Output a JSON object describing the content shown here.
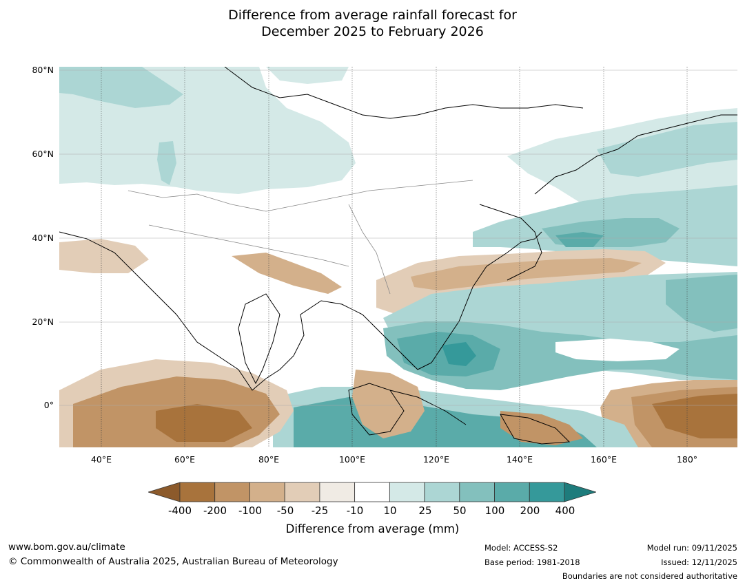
{
  "title": {
    "line1": "Difference from average rainfall forecast for",
    "line2": "December 2025 to February 2026"
  },
  "map": {
    "lat_labels": [
      "80°N",
      "60°N",
      "40°N",
      "20°N",
      "0°"
    ],
    "lon_labels": [
      "40°E",
      "60°E",
      "80°E",
      "100°E",
      "120°E",
      "140°E",
      "160°E",
      "180°"
    ],
    "extent": {
      "lon": [
        30,
        192
      ],
      "lat": [
        -10,
        81
      ]
    }
  },
  "colorbar": {
    "ticks": [
      "-400",
      "-200",
      "-100",
      "-50",
      "-25",
      "-10",
      "10",
      "25",
      "50",
      "100",
      "200",
      "400"
    ],
    "colors": [
      "#8c5a2b",
      "#a8733c",
      "#c19466",
      "#d3b08b",
      "#e2cdb7",
      "#f0ebe4",
      "#ffffff",
      "#d4e9e7",
      "#acd6d4",
      "#83c0bd",
      "#5aaba9",
      "#35999a",
      "#1e7c7c"
    ],
    "label": "Difference from average (mm)"
  },
  "footer": {
    "website": "www.bom.gov.au/climate",
    "copyright": "© Commonwealth of Australia 2025, Australian Bureau of Meteorology",
    "model": "Model: ACCESS-S2",
    "base_period": "Base period: 1981-2018",
    "model_run": "Model run: 09/11/2025",
    "issued": "Issued: 12/11/2025",
    "disclaimer": "Boundaries are not considered authoritative"
  }
}
